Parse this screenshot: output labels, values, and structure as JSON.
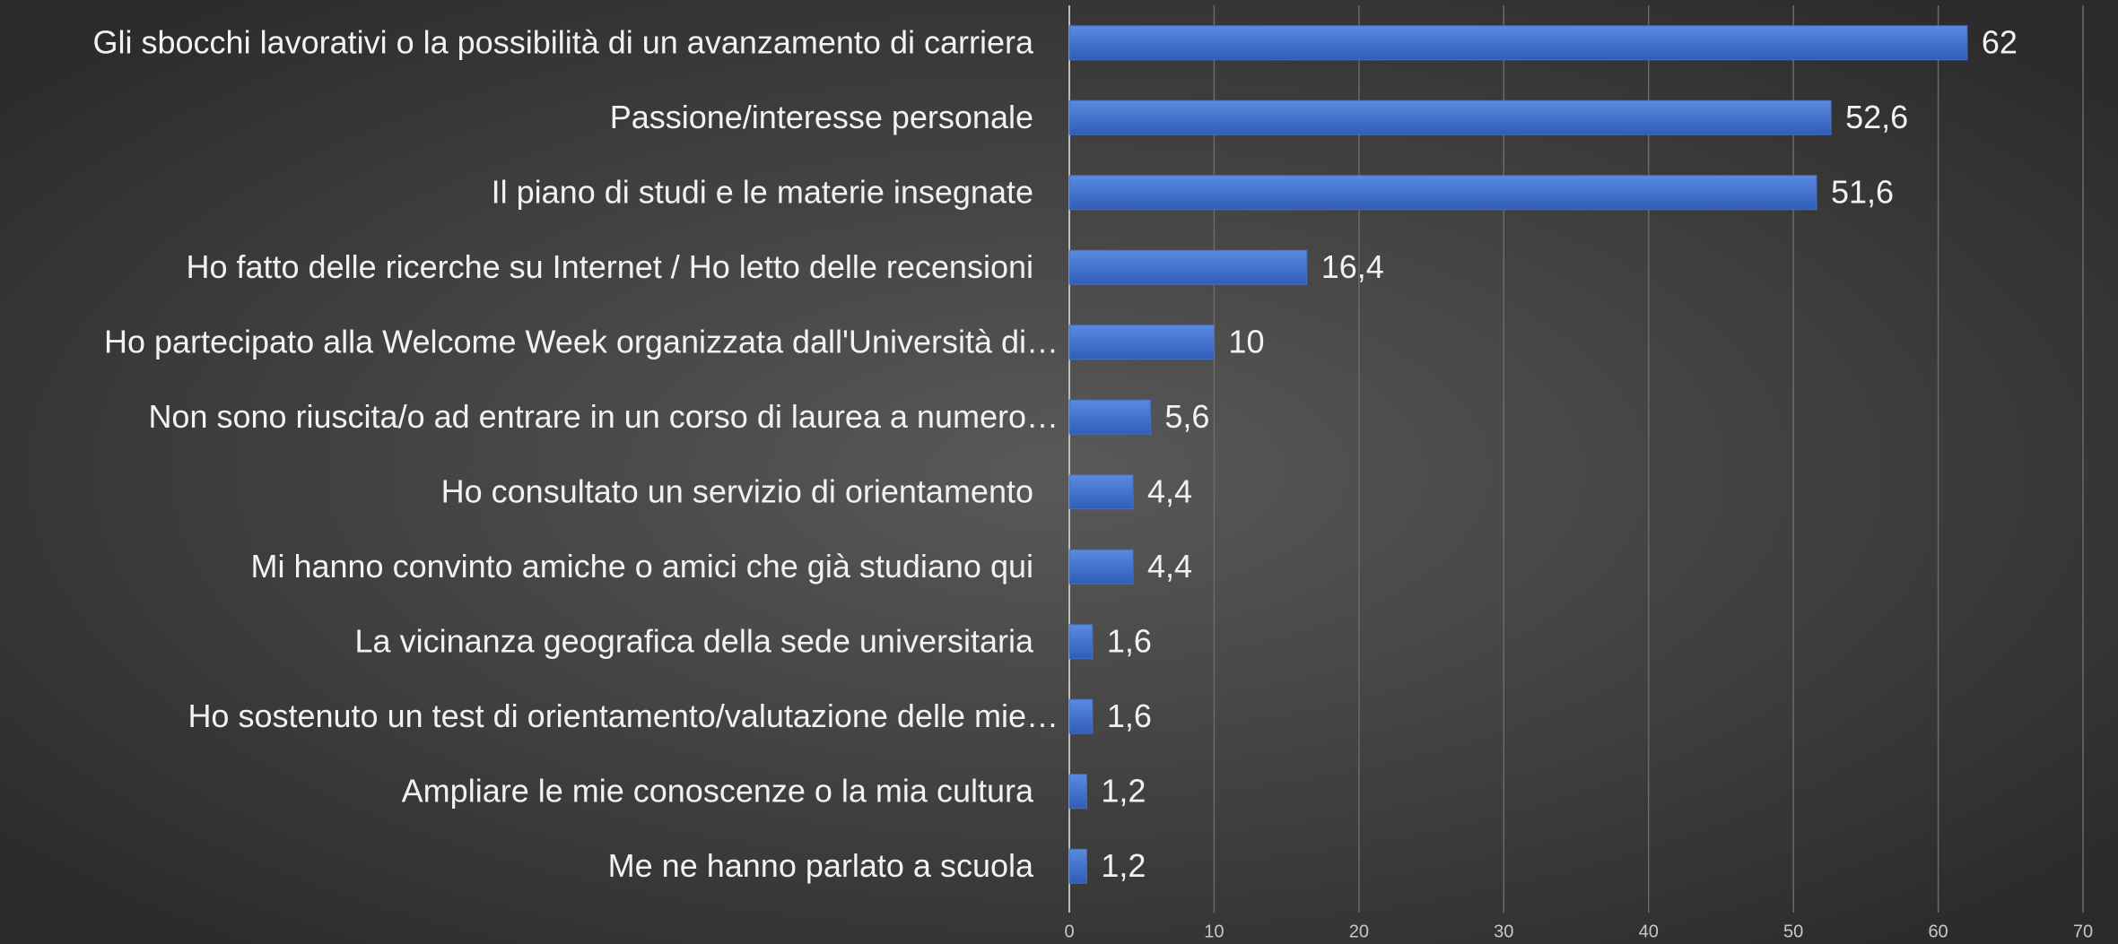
{
  "chart_data": {
    "type": "bar",
    "orientation": "horizontal",
    "categories": [
      "Gli sbocchi lavorativi o la possibilità di un avanzamento di carriera",
      "Passione/interesse personale",
      "Il piano di studi e le materie insegnate",
      "Ho fatto delle ricerche su Internet / Ho letto delle recensioni",
      "Ho partecipato alla Welcome Week organizzata dall'Università di…",
      "Non sono riuscita/o ad entrare in un corso di laurea a numero…",
      "Ho consultato un servizio di orientamento",
      "Mi hanno convinto amiche o amici che già studiano qui",
      "La vicinanza geografica della sede universitaria",
      "Ho sostenuto un test di orientamento/valutazione delle mie…",
      "Ampliare le mie conoscenze o la mia cultura",
      "Me ne hanno parlato a scuola"
    ],
    "values": [
      62,
      52.6,
      51.6,
      16.4,
      10,
      5.6,
      4.4,
      4.4,
      1.6,
      1.6,
      1.2,
      1.2
    ],
    "value_labels": [
      "62",
      "52,6",
      "51,6",
      "16,4",
      "10",
      "5,6",
      "4,4",
      "4,4",
      "1,6",
      "1,6",
      "1,2",
      "1,2"
    ],
    "color": "#4472c4",
    "xlim": [
      0,
      70
    ],
    "xticks": [
      0,
      10,
      20,
      30,
      40,
      50,
      60,
      70
    ],
    "grid": true
  }
}
